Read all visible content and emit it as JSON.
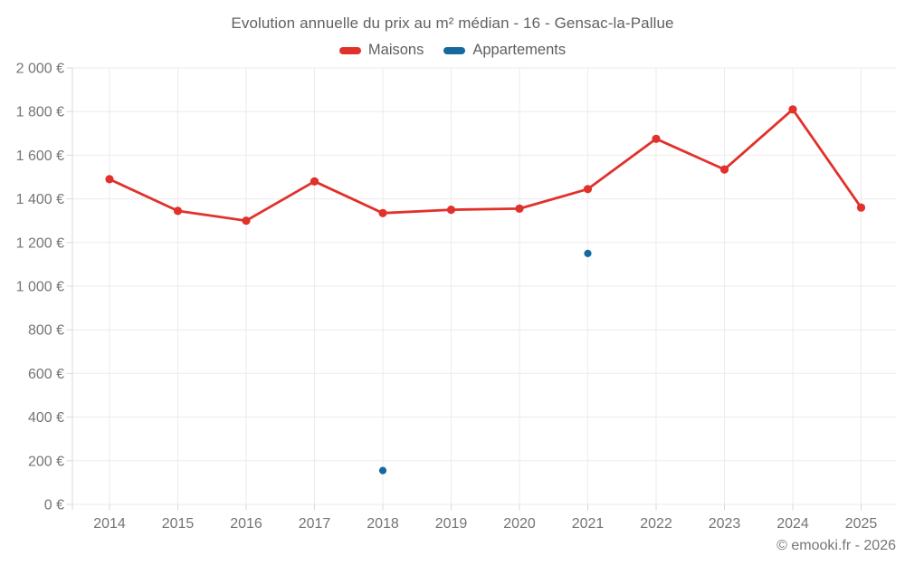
{
  "header": {
    "title": "Evolution annuelle du prix au m² médian - 16 - Gensac-la-Pallue"
  },
  "legend": {
    "items": [
      {
        "label": "Maisons",
        "color": "#e1312b"
      },
      {
        "label": "Appartements",
        "color": "#16699d"
      }
    ]
  },
  "footer": {
    "credit": "© emooki.fr - 2026"
  },
  "chart_data": {
    "type": "line",
    "title": "Evolution annuelle du prix au m² médian - 16 - Gensac-la-Pallue",
    "categories": [
      "2014",
      "2015",
      "2016",
      "2017",
      "2018",
      "2019",
      "2020",
      "2021",
      "2022",
      "2023",
      "2024",
      "2025"
    ],
    "series": [
      {
        "name": "Maisons",
        "color": "#e1312b",
        "values": [
          1490,
          1345,
          1300,
          1480,
          1335,
          1350,
          1355,
          1445,
          1675,
          1535,
          1810,
          1360
        ]
      },
      {
        "name": "Appartements",
        "color": "#16699d",
        "values": [
          null,
          null,
          null,
          null,
          155,
          null,
          null,
          1150,
          null,
          null,
          null,
          null
        ]
      }
    ],
    "xlabel": "",
    "ylabel": "",
    "ylim": [
      0,
      2000
    ],
    "ytick_step": 200,
    "ytick_labels": [
      "0 €",
      "200 €",
      "400 €",
      "600 €",
      "800 €",
      "1 000 €",
      "1 200 €",
      "1 400 €",
      "1 600 €",
      "1 800 €",
      "2 000 €"
    ],
    "currency_suffix": "€",
    "grid": true,
    "legend_position": "top"
  },
  "colors": {
    "grid": "#ebebeb",
    "axis": "#d9d9d9",
    "tick_text": "#757575",
    "title_text": "#616161",
    "background": "#ffffff"
  }
}
